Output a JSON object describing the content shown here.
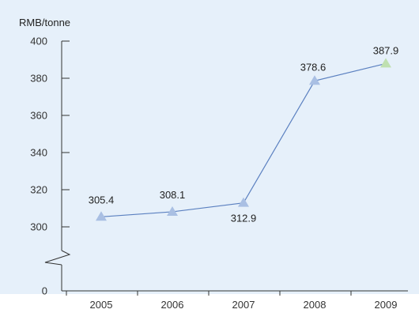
{
  "chart_data": {
    "type": "line",
    "title": "",
    "ylabel": "RMB/tonne",
    "xlabel": "",
    "categories": [
      "2005",
      "2006",
      "2007",
      "2008",
      "2009"
    ],
    "series": [
      {
        "values": [
          305.4,
          308.1,
          312.9,
          378.6,
          387.9
        ],
        "data_labels": [
          "305.4",
          "308.1",
          "312.9",
          "378.6",
          "387.9"
        ]
      }
    ],
    "y_ticks": [
      "0",
      "300",
      "320",
      "340",
      "360",
      "380",
      "400"
    ],
    "ylim": [
      300,
      400
    ],
    "axis_break": true,
    "grid": false,
    "colors": {
      "background": "#e6f0fa",
      "line": "#5b80c0",
      "marker": "#a9bfe3",
      "highlight_marker": "#bfe0b0",
      "axis": "#333333"
    }
  }
}
